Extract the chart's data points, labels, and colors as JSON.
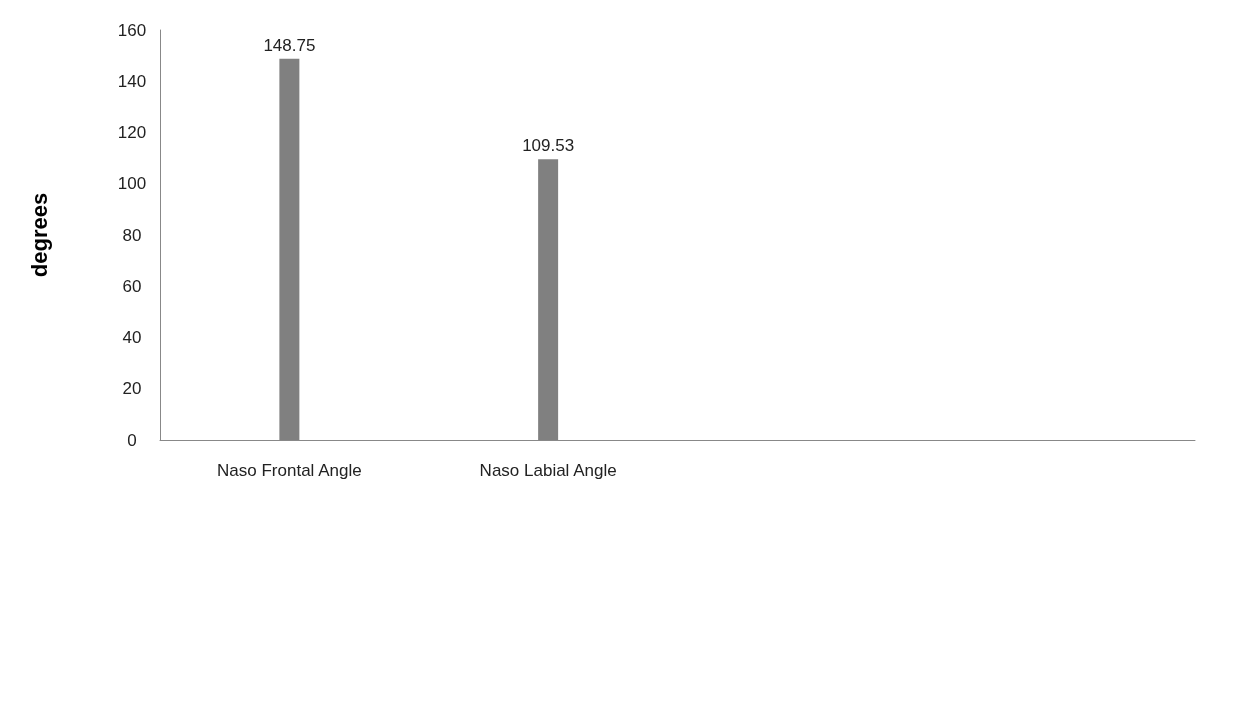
{
  "chart_data": {
    "type": "bar",
    "ylabel": "degrees",
    "categories": [
      "Naso Frontal Angle",
      "Naso Labial Angle",
      null,
      null
    ],
    "values": [
      148.75,
      109.53,
      null,
      null
    ],
    "color": "#808080",
    "ylim": [
      0,
      160
    ],
    "yticks": [
      0,
      20,
      40,
      60,
      80,
      100,
      120,
      140,
      160
    ],
    "grid": false,
    "data_labels": true
  }
}
